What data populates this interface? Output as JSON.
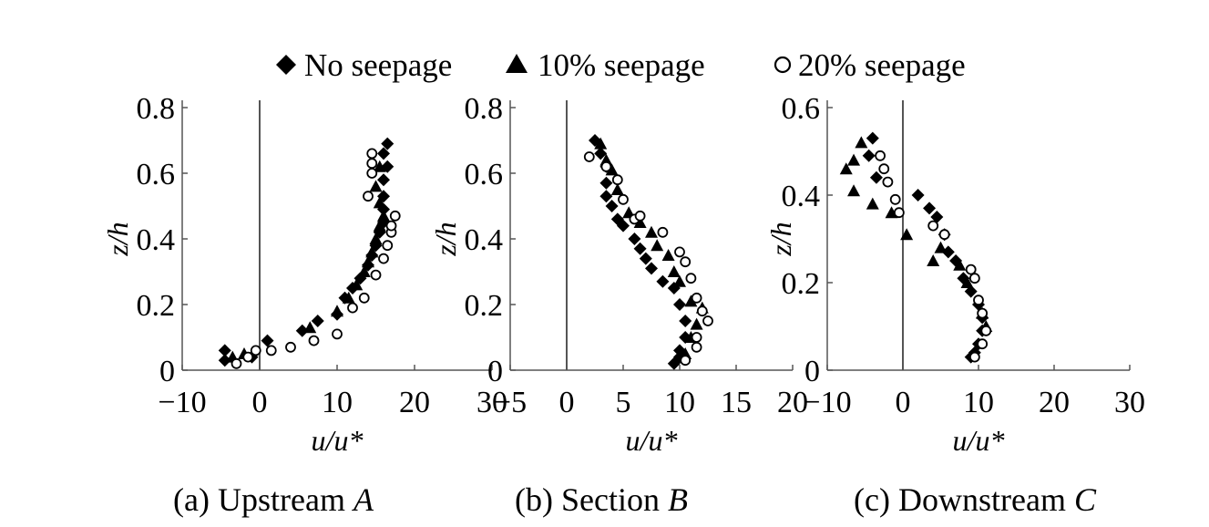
{
  "legend": {
    "items": [
      {
        "label": "No seepage",
        "marker": "diamond"
      },
      {
        "label": "10% seepage",
        "marker": "triangle"
      },
      {
        "label": "20% seepage",
        "marker": "circle"
      }
    ]
  },
  "chart_data": [
    {
      "type": "scatter",
      "caption_prefix": "(a) Upstream ",
      "caption_letter": "A",
      "xlabel": "u/u*",
      "ylabel": "z/h",
      "xlim": [
        -10,
        30
      ],
      "ylim": [
        0,
        0.8
      ],
      "xticks": [
        -10,
        0,
        10,
        20,
        30
      ],
      "yticks": [
        0,
        0.2,
        0.4,
        0.6,
        0.8
      ],
      "xtick_labels": [
        "−10",
        "0",
        "10",
        "20",
        "30"
      ],
      "ytick_labels": [
        "0",
        "0.2",
        "0.4",
        "0.6",
        "0.8"
      ],
      "zero_line": true,
      "series": [
        {
          "name": "No seepage",
          "marker": "diamond",
          "x": [
            -4.5,
            -4.5,
            -1.0,
            1.0,
            5.5,
            7.5,
            10.0,
            11.0,
            12.0,
            13.0,
            14.0,
            14.5,
            15.0,
            15.5,
            16.0,
            16.0,
            16.0,
            16.0,
            16.5,
            16.0,
            16.5
          ],
          "y": [
            0.03,
            0.06,
            0.04,
            0.09,
            0.12,
            0.15,
            0.17,
            0.22,
            0.25,
            0.28,
            0.32,
            0.35,
            0.38,
            0.42,
            0.45,
            0.49,
            0.53,
            0.58,
            0.62,
            0.66,
            0.69
          ]
        },
        {
          "name": "10% seepage",
          "marker": "triangle",
          "x": [
            -3.5,
            -2.0,
            6.5,
            10.0,
            11.5,
            12.5,
            13.5,
            14.0,
            14.5,
            15.0,
            15.5,
            16.0,
            15.5,
            15.0,
            15.5
          ],
          "y": [
            0.04,
            0.05,
            0.13,
            0.18,
            0.22,
            0.26,
            0.3,
            0.33,
            0.36,
            0.4,
            0.44,
            0.47,
            0.51,
            0.56,
            0.62
          ]
        },
        {
          "name": "20% seepage",
          "marker": "circle",
          "x": [
            -3.0,
            -1.5,
            -0.5,
            1.5,
            4.0,
            7.0,
            10.0,
            12.0,
            13.5,
            15.0,
            16.0,
            16.5,
            17.0,
            17.0,
            17.5,
            14.0,
            14.5,
            14.5,
            14.5
          ],
          "y": [
            0.02,
            0.04,
            0.06,
            0.06,
            0.07,
            0.09,
            0.11,
            0.19,
            0.22,
            0.29,
            0.34,
            0.38,
            0.42,
            0.44,
            0.47,
            0.53,
            0.6,
            0.63,
            0.66
          ]
        }
      ]
    },
    {
      "type": "scatter",
      "caption_prefix": "(b) Section ",
      "caption_letter": "B",
      "xlabel": "u/u*",
      "ylabel": "z/h",
      "xlim": [
        -5,
        20
      ],
      "ylim": [
        0,
        0.8
      ],
      "xticks": [
        -5,
        0,
        5,
        10,
        15,
        20
      ],
      "yticks": [
        0,
        0.2,
        0.4,
        0.6,
        0.8
      ],
      "xtick_labels": [
        "−5",
        "0",
        "5",
        "10",
        "15",
        "20"
      ],
      "ytick_labels": [
        "0",
        "0.2",
        "0.4",
        "0.6",
        "0.8"
      ],
      "zero_line": true,
      "series": [
        {
          "name": "No seepage",
          "marker": "diamond",
          "x": [
            2.5,
            3.0,
            3.5,
            3.5,
            3.5,
            4.0,
            4.5,
            5.0,
            6.0,
            6.5,
            7.0,
            7.5,
            8.5,
            9.5,
            10.0,
            10.5,
            10.5,
            10.0,
            10.0,
            9.5
          ],
          "y": [
            0.7,
            0.66,
            0.62,
            0.57,
            0.53,
            0.5,
            0.46,
            0.44,
            0.4,
            0.37,
            0.34,
            0.31,
            0.27,
            0.25,
            0.2,
            0.15,
            0.1,
            0.06,
            0.04,
            0.02
          ]
        },
        {
          "name": "10% seepage",
          "marker": "triangle",
          "x": [
            3.0,
            3.5,
            4.0,
            4.5,
            5.5,
            6.5,
            7.5,
            8.0,
            9.0,
            9.5,
            10.0,
            11.0,
            12.0,
            11.5,
            11.0,
            10.5
          ],
          "y": [
            0.69,
            0.64,
            0.61,
            0.55,
            0.48,
            0.45,
            0.42,
            0.38,
            0.35,
            0.3,
            0.27,
            0.21,
            0.19,
            0.14,
            0.1,
            0.05
          ]
        },
        {
          "name": "20% seepage",
          "marker": "circle",
          "x": [
            2.0,
            3.5,
            4.5,
            5.0,
            6.0,
            6.5,
            8.5,
            10.0,
            10.5,
            11.0,
            11.5,
            12.0,
            12.5,
            11.5,
            11.5,
            10.5
          ],
          "y": [
            0.65,
            0.62,
            0.58,
            0.52,
            0.46,
            0.47,
            0.42,
            0.36,
            0.33,
            0.28,
            0.22,
            0.18,
            0.15,
            0.1,
            0.07,
            0.03
          ]
        }
      ]
    },
    {
      "type": "scatter",
      "caption_prefix": "(c) Downstream ",
      "caption_letter": "C",
      "xlabel": "u/u*",
      "ylabel": "z/h",
      "xlim": [
        -10,
        30
      ],
      "ylim": [
        0,
        0.6
      ],
      "xticks": [
        -10,
        0,
        10,
        20,
        30
      ],
      "yticks": [
        0,
        0.2,
        0.4,
        0.6
      ],
      "xtick_labels": [
        "−10",
        "0",
        "10",
        "20",
        "30"
      ],
      "ytick_labels": [
        "0",
        "0.2",
        "0.4",
        "0.6"
      ],
      "zero_line": true,
      "series": [
        {
          "name": "No seepage",
          "marker": "diamond",
          "x": [
            -4.0,
            -4.5,
            -3.5,
            2.0,
            3.5,
            4.5,
            5.5,
            6.0,
            7.0,
            8.0,
            9.0,
            10.0,
            10.5,
            10.5,
            10.0,
            9.5,
            9.0
          ],
          "y": [
            0.53,
            0.49,
            0.44,
            0.4,
            0.37,
            0.35,
            0.31,
            0.27,
            0.25,
            0.21,
            0.18,
            0.15,
            0.12,
            0.09,
            0.06,
            0.04,
            0.03
          ]
        },
        {
          "name": "10% seepage",
          "marker": "triangle",
          "x": [
            -5.5,
            -6.5,
            -7.5,
            -6.5,
            -4.0,
            -1.5,
            0.5,
            4.0,
            5.0,
            7.5,
            8.5,
            10.5,
            11.0
          ],
          "y": [
            0.52,
            0.48,
            0.46,
            0.41,
            0.38,
            0.36,
            0.31,
            0.25,
            0.28,
            0.24,
            0.2,
            0.13,
            0.1
          ]
        },
        {
          "name": "20% seepage",
          "marker": "circle",
          "x": [
            -3.0,
            -2.5,
            -2.0,
            -1.0,
            -0.5,
            4.0,
            5.5,
            9.0,
            9.5,
            10.0,
            10.5,
            11.0,
            10.5,
            9.5
          ],
          "y": [
            0.49,
            0.46,
            0.43,
            0.39,
            0.36,
            0.33,
            0.31,
            0.23,
            0.21,
            0.16,
            0.13,
            0.09,
            0.06,
            0.03
          ]
        }
      ]
    }
  ]
}
